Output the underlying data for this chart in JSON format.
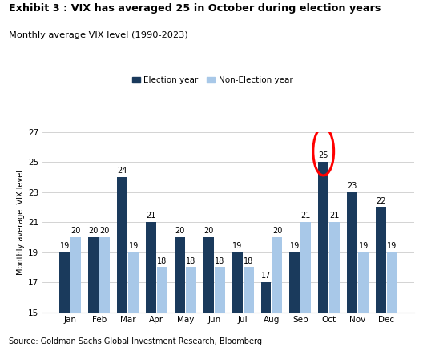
{
  "title": "Exhibit 3 : VIX has averaged 25 in October during election years",
  "subtitle": "Monthly average VIX level (1990-2023)",
  "source": "Source: Goldman Sachs Global Investment Research, Bloomberg",
  "months": [
    "Jan",
    "Feb",
    "Mar",
    "Apr",
    "May",
    "Jun",
    "Jul",
    "Aug",
    "Sep",
    "Oct",
    "Nov",
    "Dec"
  ],
  "election_year": [
    19,
    20,
    24,
    21,
    20,
    20,
    19,
    17,
    19,
    25,
    23,
    22
  ],
  "non_election_year": [
    20,
    20,
    19,
    18,
    18,
    18,
    18,
    20,
    21,
    21,
    19,
    19
  ],
  "election_color": "#1a3a5c",
  "non_election_color": "#a8c8e8",
  "ylim": [
    15,
    27
  ],
  "yticks": [
    15,
    17,
    19,
    21,
    23,
    25,
    27
  ],
  "highlight_month_idx": 9,
  "circle_color": "red",
  "ylabel": "Monthly average  VIX level",
  "background_color": "#ffffff",
  "title_fontsize": 9.5,
  "subtitle_fontsize": 8.5,
  "bar_width": 0.36,
  "bar_gap": 0.03
}
